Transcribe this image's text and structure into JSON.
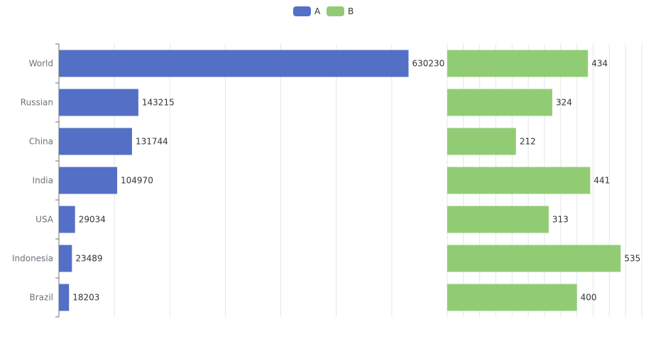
{
  "chart_data": {
    "type": "bar",
    "orientation": "horizontal",
    "categories": [
      "World",
      "Russian",
      "China",
      "India",
      "USA",
      "Indonesia",
      "Brazil"
    ],
    "series": [
      {
        "name": "A",
        "color": "#5470c6",
        "values": [
          630230,
          143215,
          131744,
          104970,
          29034,
          23489,
          18203
        ]
      },
      {
        "name": "B",
        "color": "#91cc75",
        "values": [
          434,
          324,
          212,
          441,
          313,
          535,
          400
        ]
      }
    ],
    "xlim": {
      "A": [
        0,
        700000
      ],
      "B": [
        0,
        600
      ]
    },
    "title": "",
    "xlabel": "",
    "ylabel": "",
    "grid": true,
    "legend": "top-center",
    "data_labels": true
  }
}
